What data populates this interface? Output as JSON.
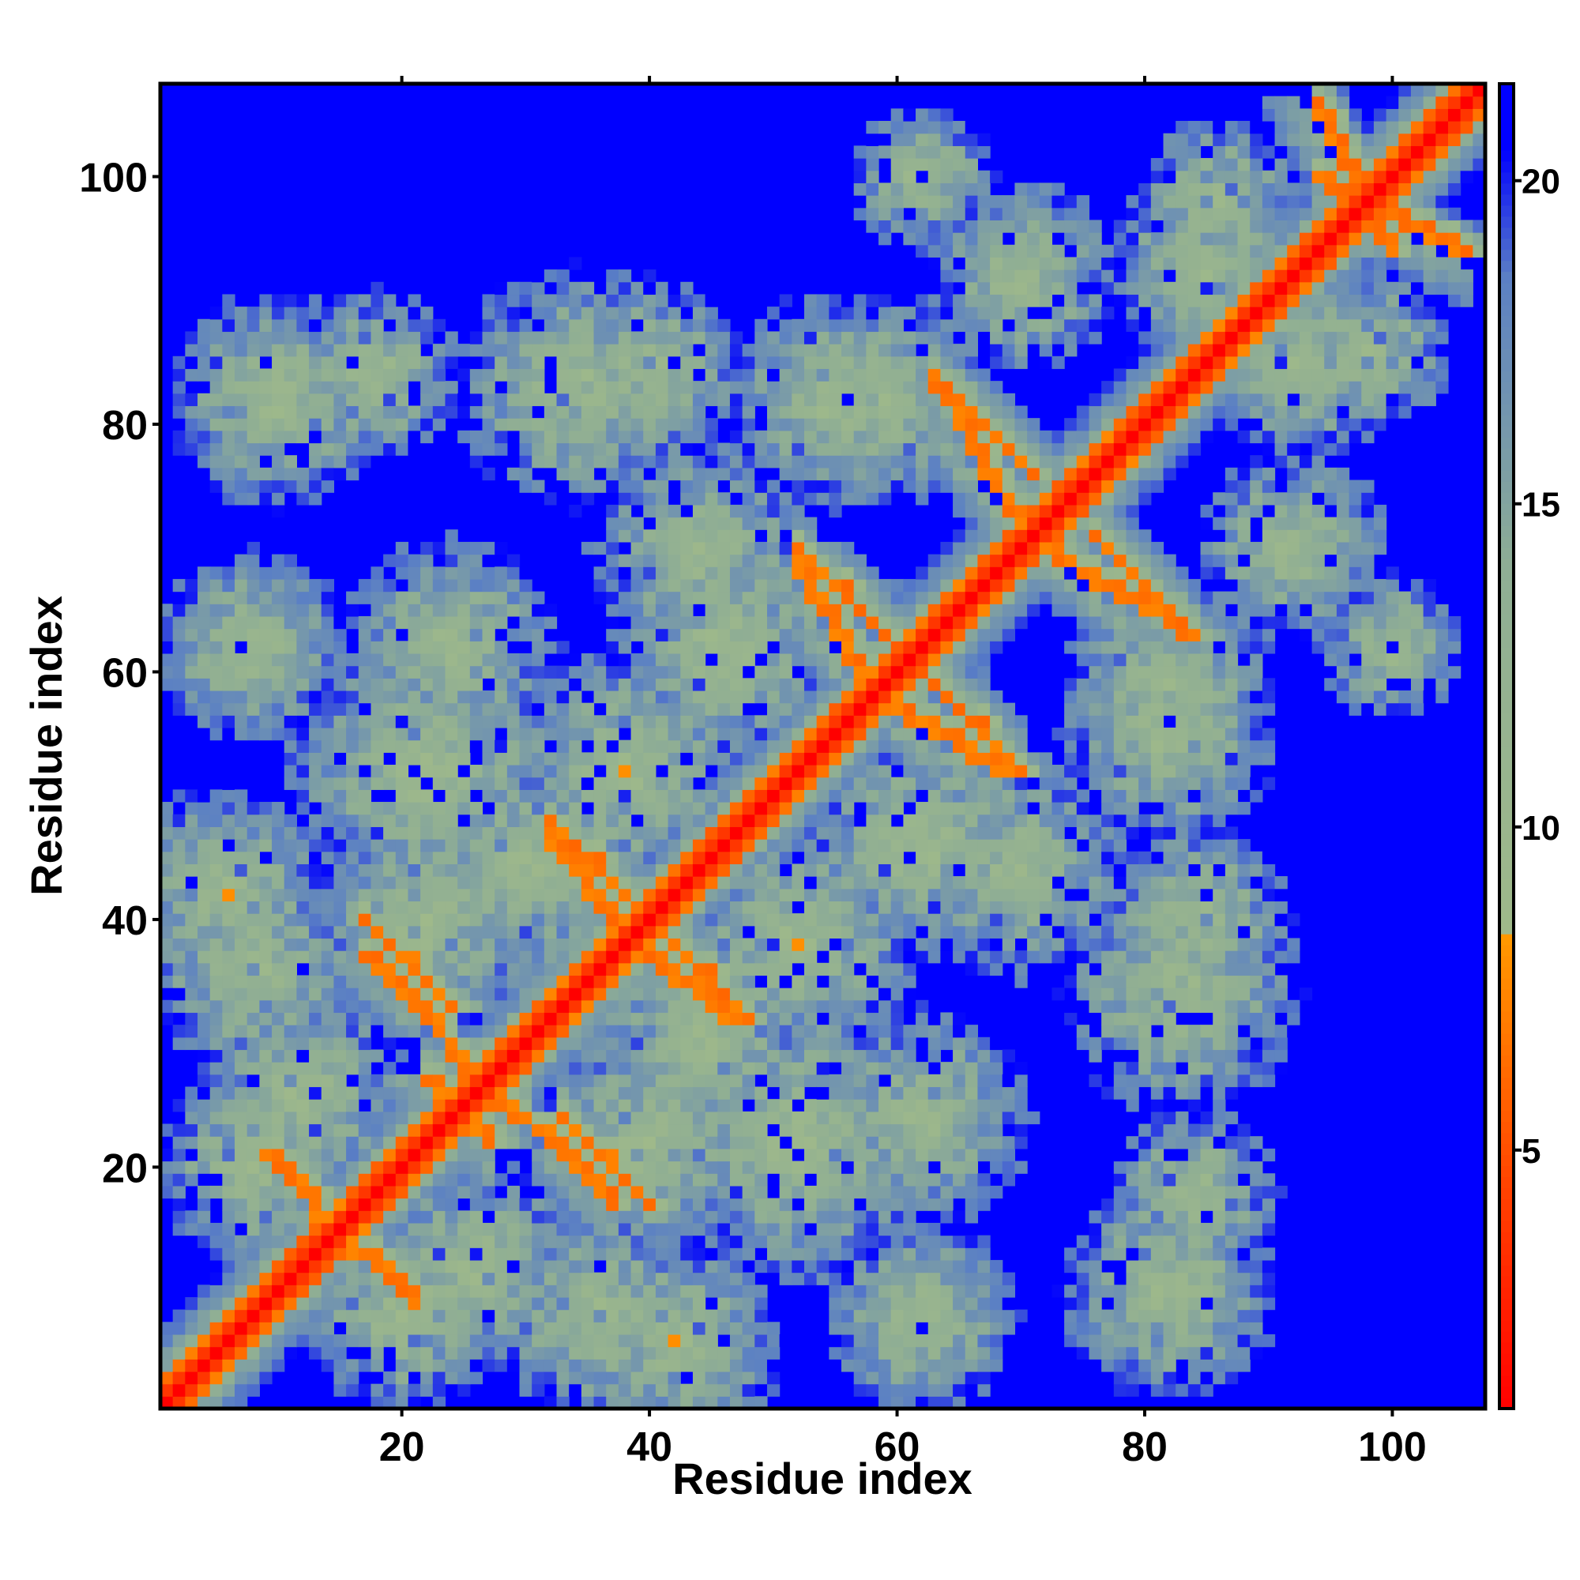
{
  "chart_data": {
    "type": "heatmap",
    "description_kind": "contact distance map",
    "xlabel": "Residue index",
    "ylabel": "Residue index",
    "xlim": [
      1,
      107
    ],
    "ylim": [
      1,
      107
    ],
    "x_ticks": [
      20,
      40,
      60,
      80,
      100
    ],
    "y_ticks": [
      20,
      40,
      60,
      80,
      100
    ],
    "colorbar": {
      "range": [
        1,
        21.5
      ],
      "ticks": [
        5,
        10,
        15,
        20
      ],
      "stops": [
        {
          "value": 1,
          "color": "#ff0000"
        },
        {
          "value": 4.5,
          "color": "#ff4400"
        },
        {
          "value": 8.3,
          "color": "#ff9900"
        },
        {
          "value": 8.4,
          "color": "#9fb98a"
        },
        {
          "value": 14,
          "color": "#8fae94"
        },
        {
          "value": 18.5,
          "color": "#5b80c4"
        },
        {
          "value": 20.5,
          "color": "#0000ff"
        }
      ]
    },
    "n_residues": 107,
    "background_value": 21,
    "diagonal": {
      "near_value": 1,
      "next_value": 3.8
    },
    "contact_bands": [
      {
        "a": [
          9,
          13
        ],
        "b": [
          21,
          17
        ],
        "value": 6
      },
      {
        "a": [
          14,
          21
        ],
        "b": [
          15,
          10
        ],
        "value": 6
      },
      {
        "a": [
          17,
          24
        ],
        "b": [
          40,
          33
        ],
        "value": 6
      },
      {
        "a": [
          24,
          27
        ],
        "b": [
          30,
          22
        ],
        "value": 6
      },
      {
        "a": [
          31,
          37
        ],
        "b": [
          23,
          17
        ],
        "value": 6
      },
      {
        "a": [
          32,
          39
        ],
        "b": [
          48,
          41
        ],
        "value": 6
      },
      {
        "a": [
          40,
          47
        ],
        "b": [
          37,
          32
        ],
        "value": 6
      },
      {
        "a": [
          52,
          59
        ],
        "b": [
          70,
          63
        ],
        "value": 6
      },
      {
        "a": [
          60,
          69
        ],
        "b": [
          57,
          52
        ],
        "value": 6
      },
      {
        "a": [
          63,
          71
        ],
        "b": [
          84,
          76
        ],
        "value": 6
      },
      {
        "a": [
          72,
          84
        ],
        "b": [
          70,
          63
        ],
        "value": 6
      },
      {
        "a": [
          94,
          106
        ],
        "b": [
          100,
          94
        ],
        "value": 6
      }
    ],
    "clusters": [
      {
        "x": 10,
        "y": 82,
        "r": 9
      },
      {
        "x": 34,
        "y": 83,
        "r": 10
      },
      {
        "x": 58,
        "y": 82,
        "r": 9
      },
      {
        "x": 70,
        "y": 92,
        "r": 8
      },
      {
        "x": 85,
        "y": 93,
        "r": 8
      },
      {
        "x": 98,
        "y": 86,
        "r": 7
      },
      {
        "x": 8,
        "y": 62,
        "r": 8
      },
      {
        "x": 22,
        "y": 52,
        "r": 12
      },
      {
        "x": 46,
        "y": 62,
        "r": 10
      },
      {
        "x": 82,
        "y": 55,
        "r": 9
      },
      {
        "x": 100,
        "y": 62,
        "r": 6
      },
      {
        "x": 6,
        "y": 42,
        "r": 9
      },
      {
        "x": 30,
        "y": 44,
        "r": 10
      },
      {
        "x": 52,
        "y": 38,
        "r": 10
      },
      {
        "x": 70,
        "y": 44,
        "r": 9
      },
      {
        "x": 84,
        "y": 40,
        "r": 8
      },
      {
        "x": 12,
        "y": 26,
        "r": 9
      },
      {
        "x": 40,
        "y": 22,
        "r": 10
      },
      {
        "x": 62,
        "y": 24,
        "r": 9
      },
      {
        "x": 84,
        "y": 18,
        "r": 7
      },
      {
        "x": 20,
        "y": 8,
        "r": 8
      },
      {
        "x": 36,
        "y": 8,
        "r": 9
      },
      {
        "x": 62,
        "y": 8,
        "r": 8
      },
      {
        "x": 84,
        "y": 10,
        "r": 6
      }
    ]
  }
}
